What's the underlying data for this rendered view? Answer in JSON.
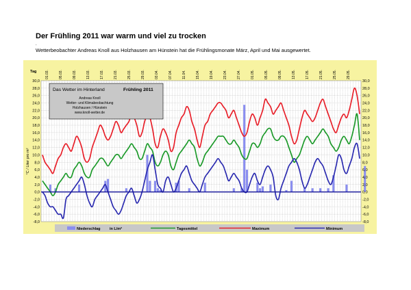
{
  "page": {
    "title": "Der Frühling 2011 war warm und viel zu trocken",
    "dot": ".",
    "subtitle": "Wetterbeobachter Andreas Knoll aus Holzhausen am Hünstein hat die Frühlingsmonate März, April und Mai ausgewertet."
  },
  "colors": {
    "panel_bg": "#f7f3a1",
    "plot_bg": "#ffffff",
    "maximum": "#e8202a",
    "tagesmittel": "#1c9a2a",
    "minimum": "#2b2bb0",
    "niederschlag": "#8a8ef0",
    "infobox_bg": "#c8c8c8",
    "legend_bg": "#c8c8c8"
  },
  "chart_data": {
    "type": "line",
    "title": "Frühling 2011",
    "infobox": {
      "left_title": "Das Wetter im Hinterland",
      "right_title": "Frühling  2011",
      "lines": [
        "Andreas Knoll",
        "Wetter- und Klimabeobachtung",
        "Holzhausen / Hünstein",
        "www.knoll-wetter.de"
      ]
    },
    "xlabel": "Tag",
    "ylabel": "°C / Liter pro m²",
    "ylim": [
      -8,
      30
    ],
    "yticks": [
      "30,0",
      "28,0",
      "26,0",
      "24,0",
      "22,0",
      "20,0",
      "18,0",
      "16,0",
      "14,0",
      "12,0",
      "10,0",
      "8,0",
      "6,0",
      "4,0",
      "2,0",
      "0,0",
      "-2,0",
      "-4,0",
      "-6,0",
      "-8,0"
    ],
    "grid": true,
    "date_labels": [
      "01.03.",
      "05.03.",
      "09.03.",
      "13.03.",
      "17.03.",
      "21.03.",
      "25.03.",
      "29.03.",
      "03.04.",
      "07.04.",
      "11.04.",
      "15.04.",
      "19.04.",
      "23.04.",
      "27.04.",
      "01.05.",
      "05.05.",
      "09.05.",
      "13.05.",
      "17.05.",
      "21.05.",
      "25.05.",
      "29.05."
    ],
    "legend": {
      "niederschlag": "Niederschlag",
      "unit": "in  L/m²",
      "tagesmittel": "Tagesmittel",
      "maximum": "Maximum",
      "minimum": "Minimum"
    },
    "series": [
      {
        "name": "Maximum",
        "values": [
          10,
          8,
          7,
          6,
          5,
          7,
          9,
          10,
          12,
          13,
          12,
          11,
          13,
          15,
          14,
          12,
          9,
          8,
          9,
          12,
          14,
          16,
          18,
          17,
          15,
          14,
          15,
          17,
          19,
          18,
          16,
          17,
          18,
          19,
          21,
          20,
          18,
          15,
          16,
          19,
          21,
          20,
          17,
          13,
          12,
          15,
          17,
          16,
          14,
          11,
          12,
          16,
          18,
          20,
          21,
          23,
          22,
          19,
          17,
          14,
          12,
          15,
          18,
          19,
          21,
          22,
          23,
          24,
          24,
          23,
          22,
          20,
          21,
          22,
          20,
          18,
          16,
          15,
          16,
          19,
          21,
          20,
          18,
          20,
          22,
          25,
          24,
          23,
          21,
          22,
          23,
          24,
          22,
          20,
          18,
          15,
          13,
          14,
          17,
          20,
          22,
          21,
          20,
          19,
          20,
          22,
          24,
          25,
          23,
          21,
          19,
          17,
          16,
          18,
          20,
          21,
          20,
          22,
          25,
          28,
          26,
          21
        ]
      },
      {
        "name": "Tagesmittel",
        "values": [
          3,
          2,
          1,
          0,
          -1,
          0,
          2,
          3,
          4,
          5,
          4,
          4,
          6,
          7,
          8,
          7,
          5,
          4,
          4,
          6,
          7,
          8,
          9,
          9,
          8,
          7,
          8,
          9,
          10,
          10,
          9,
          10,
          11,
          12,
          13,
          12,
          11,
          9,
          9,
          11,
          13,
          12,
          11,
          8,
          7,
          8,
          10,
          11,
          10,
          7,
          6,
          8,
          10,
          11,
          12,
          13,
          14,
          13,
          12,
          9,
          7,
          8,
          10,
          11,
          12,
          13,
          14,
          15,
          15,
          15,
          14,
          13,
          13,
          14,
          13,
          12,
          10,
          9,
          9,
          11,
          13,
          13,
          12,
          13,
          15,
          16,
          17,
          17,
          15,
          14,
          14,
          15,
          15,
          14,
          12,
          10,
          8,
          9,
          10,
          12,
          14,
          15,
          14,
          13,
          14,
          15,
          16,
          17,
          16,
          15,
          13,
          12,
          11,
          12,
          14,
          15,
          14,
          13,
          15,
          18,
          21,
          14
        ]
      },
      {
        "name": "Minimum",
        "values": [
          0,
          -1,
          -3,
          -4,
          -4,
          -5,
          -6,
          -6,
          -7,
          -2,
          -1,
          0,
          1,
          2,
          3,
          4,
          2,
          -1,
          -3,
          -4,
          -2,
          -1,
          0,
          1,
          2,
          0,
          -2,
          -4,
          -5,
          -6,
          -5,
          -3,
          -1,
          0,
          1,
          -1,
          -3,
          -2,
          0,
          3,
          6,
          8,
          10,
          6,
          2,
          1,
          0,
          3,
          4,
          2,
          0,
          1,
          3,
          5,
          6,
          7,
          5,
          3,
          2,
          1,
          0,
          2,
          4,
          5,
          6,
          7,
          8,
          9,
          8,
          7,
          5,
          3,
          4,
          5,
          4,
          3,
          1,
          0,
          0,
          2,
          4,
          5,
          3,
          2,
          4,
          6,
          7,
          6,
          4,
          -1,
          -2,
          1,
          3,
          5,
          7,
          8,
          9,
          8,
          6,
          3,
          1,
          2,
          4,
          6,
          8,
          9,
          8,
          7,
          5,
          3,
          2,
          4,
          7,
          10,
          9,
          6,
          5,
          7,
          9,
          12,
          13,
          9
        ]
      },
      {
        "name": "Niederschlag",
        "values": [
          0,
          0,
          0,
          0,
          0,
          0,
          0,
          0,
          0,
          0,
          0,
          0,
          0,
          0,
          0,
          0,
          0,
          0,
          0,
          0,
          0,
          0,
          0,
          0,
          3.5,
          0,
          0,
          0,
          0,
          0,
          0,
          0,
          0,
          0,
          0,
          0,
          0,
          0,
          0,
          0,
          0,
          0,
          0,
          0,
          0,
          0,
          0,
          0,
          0,
          0,
          0,
          0,
          0,
          0,
          0,
          0,
          0,
          0,
          0,
          0,
          0,
          0,
          0,
          0,
          0,
          0,
          0,
          0,
          0,
          0,
          0,
          0,
          0,
          0,
          0,
          0,
          0,
          0,
          0,
          0,
          0,
          0,
          0,
          0,
          0,
          0,
          0,
          0,
          0,
          0,
          0,
          0,
          0,
          0,
          0,
          0,
          0,
          0,
          0,
          0,
          0,
          0,
          0,
          0,
          0,
          0,
          0,
          0,
          0,
          0,
          0,
          0,
          0,
          0,
          0,
          0,
          0,
          0,
          0,
          0,
          0,
          0
        ]
      }
    ],
    "rain_bars": [
      {
        "day": 3,
        "value": 2.0
      },
      {
        "day": 5,
        "value": 1.0
      },
      {
        "day": 14,
        "value": 2.0
      },
      {
        "day": 24,
        "value": 3.0
      },
      {
        "day": 25,
        "value": 3.5
      },
      {
        "day": 32,
        "value": 1.0
      },
      {
        "day": 40,
        "value": 10.0
      },
      {
        "day": 41,
        "value": 3.0
      },
      {
        "day": 43,
        "value": 3.0
      },
      {
        "day": 44,
        "value": 1.0
      },
      {
        "day": 45,
        "value": 0.5
      },
      {
        "day": 51,
        "value": 2.5
      },
      {
        "day": 52,
        "value": 3.0
      },
      {
        "day": 56,
        "value": 1.0
      },
      {
        "day": 62,
        "value": 2.5
      },
      {
        "day": 73,
        "value": 1.0
      },
      {
        "day": 76,
        "value": 1.0
      },
      {
        "day": 77,
        "value": 23.5
      },
      {
        "day": 78,
        "value": 6.0
      },
      {
        "day": 82,
        "value": 2.5
      },
      {
        "day": 83,
        "value": 1.0
      },
      {
        "day": 84,
        "value": 1.5
      },
      {
        "day": 87,
        "value": 2.0
      },
      {
        "day": 93,
        "value": 0.5
      },
      {
        "day": 95,
        "value": 3.0
      },
      {
        "day": 100,
        "value": 1.0
      },
      {
        "day": 103,
        "value": 1.0
      },
      {
        "day": 106,
        "value": 1.0
      },
      {
        "day": 109,
        "value": 1.0
      },
      {
        "day": 111,
        "value": 4.5
      },
      {
        "day": 116,
        "value": 2.0
      },
      {
        "day": 123,
        "value": 7.0
      }
    ]
  }
}
